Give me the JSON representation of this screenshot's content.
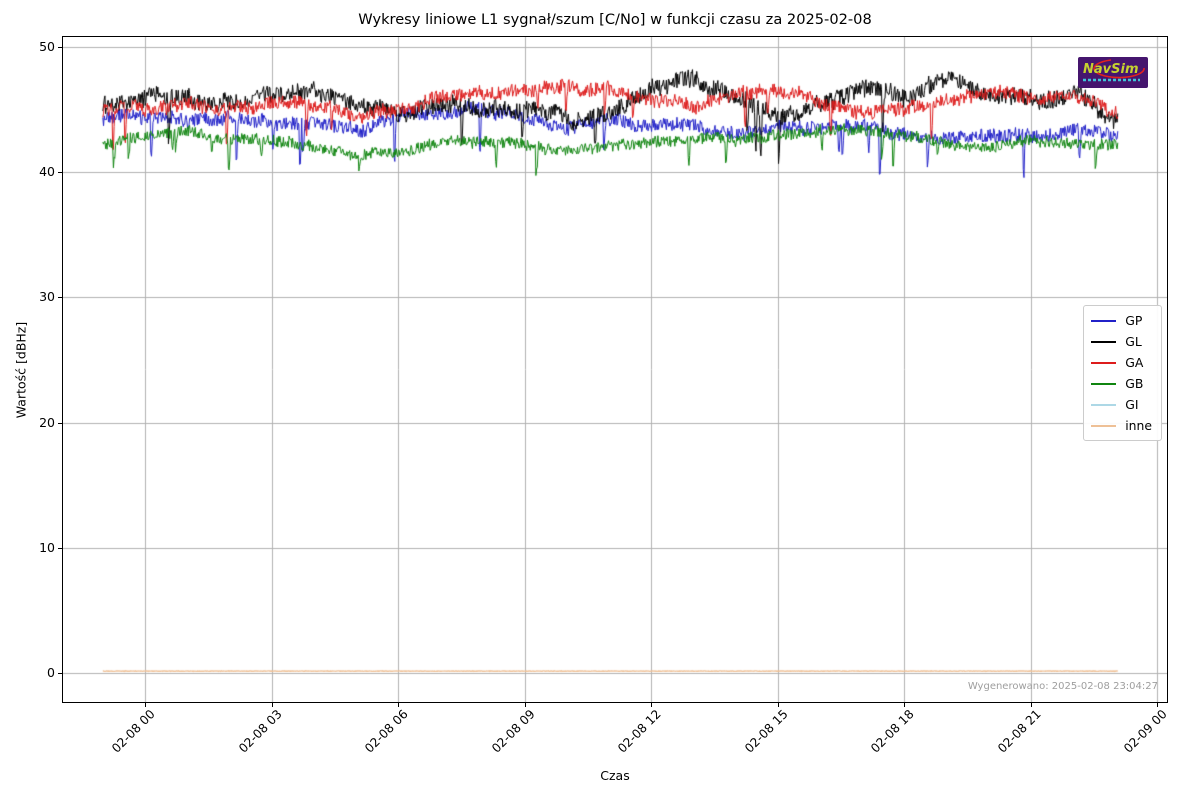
{
  "chart_data": {
    "type": "line",
    "title": "Wykresy liniowe L1 sygnał/szum [C/No] w funkcji czasu za 2025-02-08",
    "xlabel": "Czas",
    "ylabel": "Wartość [dBHz]",
    "grid": true,
    "legend_position": "right",
    "ylim": [
      -2.3,
      50.8
    ],
    "y_ticks": [
      0,
      10,
      20,
      30,
      40,
      50
    ],
    "y_tick_labels": [
      "0",
      "10",
      "20",
      "30",
      "40",
      "50"
    ],
    "x_tick_labels": [
      "02-08 00",
      "02-08 03",
      "02-08 06",
      "02-08 09",
      "02-08 12",
      "02-08 15",
      "02-08 18",
      "02-08 21",
      "02-09 00"
    ],
    "x_range_hours_rel_midnight": [
      -1.0,
      23.07
    ],
    "sampling_note": "hourly mean estimates read from plot, noisy 1-min data in original",
    "series": [
      {
        "name": "GP",
        "color": "#2121c8",
        "noise": 0.55,
        "spike_rate": 0.012,
        "spike_depth": 4.0,
        "wobble": 0.6,
        "values": [
          44.2,
          44.4,
          44.0,
          44.5,
          44.3,
          43.8,
          43.5,
          44.3,
          44.6,
          44.8,
          44.3,
          43.6,
          44.2,
          43.9,
          43.4,
          43.1,
          43.6,
          43.3,
          43.8,
          42.9,
          42.6,
          43.1,
          42.8,
          43.3,
          43.0
        ]
      },
      {
        "name": "GL",
        "color": "#000000",
        "noise": 0.7,
        "spike_rate": 0.01,
        "spike_depth": 3.6,
        "wobble": 1.0,
        "values": [
          45.5,
          45.6,
          45.8,
          45.4,
          46.1,
          46.4,
          45.3,
          44.8,
          45.6,
          45.0,
          44.4,
          44.1,
          44.6,
          46.6,
          47.2,
          45.6,
          44.4,
          45.1,
          47.4,
          46.2,
          47.6,
          46.0,
          45.4,
          46.6,
          43.9
        ]
      },
      {
        "name": "GA",
        "color": "#dd1c1c",
        "noise": 0.55,
        "spike_rate": 0.006,
        "spike_depth": 3.0,
        "wobble": 0.7,
        "values": [
          44.8,
          45.0,
          45.3,
          45.1,
          45.4,
          45.3,
          44.6,
          44.9,
          45.8,
          46.2,
          46.4,
          46.8,
          46.4,
          45.6,
          45.4,
          46.2,
          46.5,
          45.8,
          44.9,
          45.2,
          45.9,
          46.3,
          45.6,
          45.9,
          44.9
        ]
      },
      {
        "name": "GB",
        "color": "#108510",
        "noise": 0.45,
        "spike_rate": 0.01,
        "spike_depth": 2.7,
        "wobble": 0.5,
        "values": [
          42.1,
          42.8,
          43.2,
          42.6,
          42.3,
          42.0,
          41.4,
          41.8,
          42.4,
          42.7,
          42.0,
          41.6,
          41.9,
          42.3,
          42.8,
          42.5,
          43.0,
          43.3,
          43.5,
          43.2,
          42.4,
          42.0,
          42.6,
          42.2,
          42.0
        ]
      },
      {
        "name": "GI",
        "color": "#add8e6",
        "noise": 0,
        "spike_rate": 0,
        "spike_depth": 0,
        "wobble": 0,
        "values": []
      },
      {
        "name": "inne",
        "color": "#eec096",
        "noise": 0.02,
        "spike_rate": 0,
        "spike_depth": 0,
        "wobble": 0,
        "values": [
          0.15,
          0.15,
          0.15,
          0.15,
          0.15,
          0.15,
          0.15,
          0.15,
          0.15,
          0.15,
          0.15,
          0.15,
          0.15,
          0.15,
          0.15,
          0.15,
          0.15,
          0.15,
          0.15,
          0.15,
          0.15,
          0.15,
          0.15,
          0.15,
          0.15
        ]
      }
    ]
  },
  "logo": {
    "text": "NavSim"
  },
  "footer": {
    "generated_text": "Wygenerowano: 2025-02-08 23:04:27"
  }
}
